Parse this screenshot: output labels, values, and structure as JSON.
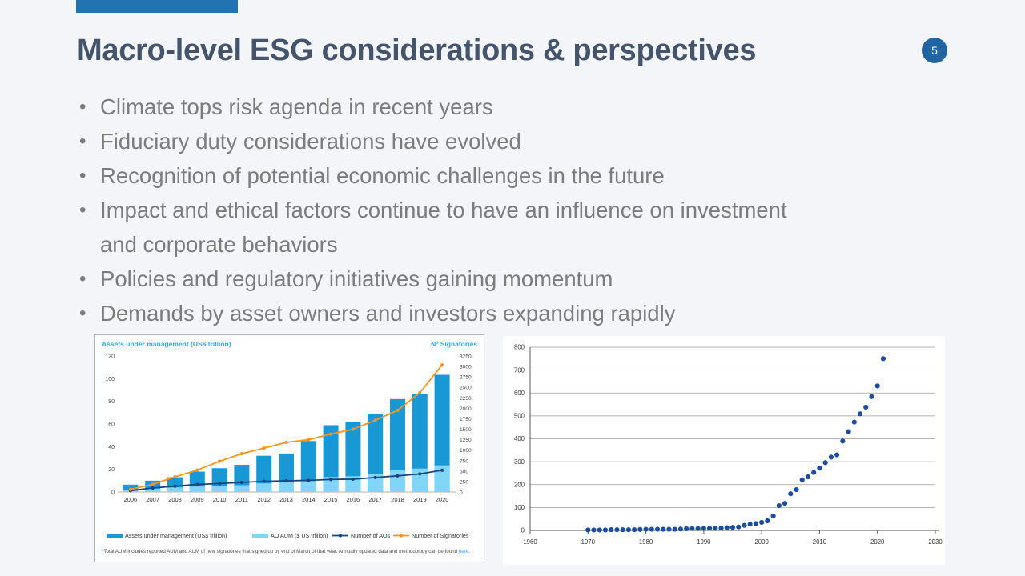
{
  "slide": {
    "title": "Macro-level ESG considerations & perspectives",
    "page_number": "5",
    "bullets": [
      "Climate tops risk agenda in recent years",
      "Fiduciary duty considerations have evolved",
      "Recognition of potential economic challenges in the future",
      "Impact and ethical factors continue to have an influence on investment\nand corporate behaviors",
      "Policies and regulatory initiatives gaining momentum",
      "Demands by asset owners and investors expanding rapidly"
    ]
  },
  "theme": {
    "background": "#f3f5f8",
    "accent_bar": "#2273b2",
    "title_color": "#44546a",
    "page_badge": "#2065a2",
    "bullet_text": "#7c7c7c",
    "panel_border": "#b3b3b3"
  },
  "chart_data": [
    {
      "id": "pri-growth",
      "type": "bar",
      "left_axis_label": "Assets under management (US$ trillion)",
      "right_axis_label": "Nº Signatories",
      "axis_label_color": "#29abe2",
      "categories": [
        "2006",
        "2007",
        "2008",
        "2009",
        "2010",
        "2011",
        "2012",
        "2013",
        "2014",
        "2015",
        "2016",
        "2017",
        "2018",
        "2019",
        "2020"
      ],
      "left_axis": {
        "min": 0,
        "max": 120,
        "step": 20
      },
      "right_axis": {
        "min": 0,
        "max": 3250,
        "step": 250
      },
      "series": [
        {
          "name": "Assets under management (US$ trillion)",
          "type": "bar",
          "axis": "left",
          "color": "#1899d6",
          "values": [
            6.5,
            10,
            13,
            18,
            21,
            24,
            32,
            34,
            45,
            59,
            62,
            68.5,
            82,
            86.5,
            103.4
          ]
        },
        {
          "name": "AO AUM ($ US trillion)",
          "type": "bar",
          "axis": "left",
          "color": "#7fd6f7",
          "values": [
            2,
            3,
            4,
            4.8,
            5.5,
            6,
            7.6,
            8.4,
            9.7,
            13.2,
            13.9,
            16.2,
            19.1,
            20.7,
            23.5
          ]
        },
        {
          "name": "Number of AOs",
          "type": "line",
          "axis": "right",
          "color": "#16477c",
          "values": [
            32,
            96,
            140,
            180,
            203,
            230,
            255,
            268,
            277,
            301,
            307,
            346,
            386,
            432,
            521
          ]
        },
        {
          "name": "Number of Signatories",
          "type": "line",
          "axis": "right",
          "color": "#f7941d",
          "values": [
            63,
            185,
            361,
            523,
            734,
            915,
            1050,
            1186,
            1251,
            1384,
            1501,
            1714,
            1951,
            2370,
            3038
          ]
        }
      ],
      "legend_position": "bottom",
      "tick_color": "#3f3f3f",
      "footnote_prefix": "*Total AUM includes reported AUM and AUM of new signatories that signed up by end of March of that year. Annually updated data and methodology can be found ",
      "footnote_link": "here",
      "footnote_suffix": "."
    },
    {
      "id": "cumulative-growth-scatter",
      "type": "scatter",
      "x": [
        1970,
        1971,
        1972,
        1973,
        1974,
        1975,
        1976,
        1977,
        1978,
        1979,
        1980,
        1981,
        1982,
        1983,
        1984,
        1985,
        1986,
        1987,
        1988,
        1989,
        1990,
        1991,
        1992,
        1993,
        1994,
        1995,
        1996,
        1997,
        1998,
        1999,
        2000,
        2001,
        2002,
        2003,
        2004,
        2005,
        2006,
        2007,
        2008,
        2009,
        2010,
        2011,
        2012,
        2013,
        2014,
        2015,
        2016,
        2017,
        2018,
        2019,
        2020,
        2021
      ],
      "values": [
        2,
        2,
        2,
        2,
        3,
        3,
        3,
        3,
        3,
        4,
        5,
        5,
        5,
        5,
        5,
        5,
        6,
        7,
        8,
        8,
        9,
        9,
        9,
        10,
        12,
        13,
        15,
        22,
        27,
        30,
        35,
        42,
        63,
        108,
        118,
        160,
        178,
        221,
        234,
        253,
        272,
        296,
        320,
        330,
        390,
        431,
        473,
        509,
        538,
        584,
        631,
        750
      ],
      "point_color": "#1d4e9e",
      "x_axis": {
        "min": 1960,
        "max": 2030,
        "step": 10
      },
      "y_axis": {
        "min": 0,
        "max": 800,
        "step": 100
      },
      "grid": "horizontal",
      "tick_color": "#333333",
      "legend_position": "none"
    }
  ]
}
